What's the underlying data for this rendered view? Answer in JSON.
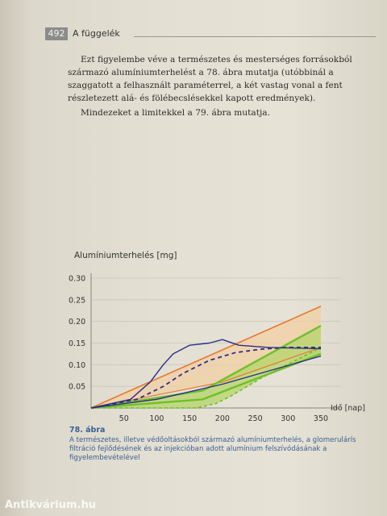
{
  "header": {
    "page_number": "492",
    "section": "A függelék"
  },
  "body": {
    "paragraphs": [
      "Ezt figyelembe véve a természetes és mesterséges forrásokból származó alumíniumterhelést a 78. ábra mutatja (utóbbinál a szaggatott a felhasznált paraméterrel, a két vastag vonal a fent részletezett alá- és fölébecslésekkel kapott eredmények).",
      "Mindezeket a limitekkel a 79. ábra mutatja."
    ]
  },
  "chart_data": {
    "type": "line",
    "title": "Alumíniumterhelés [mg]",
    "xlabel": "Idő [nap]",
    "ylabel": "",
    "xlim": [
      0,
      380
    ],
    "ylim": [
      0,
      0.3
    ],
    "x_ticks": [
      50,
      100,
      150,
      200,
      250,
      300,
      350
    ],
    "y_ticks": [
      "0.30",
      "0.25",
      "0.20",
      "0.15",
      "0.10",
      "0.05"
    ],
    "grid": true,
    "colors": {
      "orange": "#e8782c",
      "orange_fill": "#f1cfa3",
      "green": "#6fbf2a",
      "green_fill": "#b6d46a",
      "blue": "#2b2f86"
    },
    "series": [
      {
        "x": [
          0,
          350
        ],
        "y": [
          0.0,
          0.235
        ],
        "color": "#e8782c",
        "width": 1.6
      },
      {
        "x": [
          0,
          200,
          350
        ],
        "y": [
          0.0,
          0.06,
          0.14
        ],
        "color": "#e8782c",
        "width": 1.2
      },
      {
        "x": [
          0,
          170,
          350
        ],
        "y": [
          0.0,
          0.04,
          0.19
        ],
        "color": "#6fbf2a",
        "width": 2.4
      },
      {
        "x": [
          0,
          170,
          350
        ],
        "y": [
          0.0,
          0.02,
          0.125
        ],
        "color": "#6fbf2a",
        "width": 2.4
      },
      {
        "x": [
          0,
          100,
          160,
          190,
          200,
          210,
          260,
          350
        ],
        "y": [
          0.0,
          0.0,
          0.0,
          0.01,
          0.018,
          0.025,
          0.07,
          0.14
        ],
        "color": "#6fbf2a",
        "width": 1.6,
        "dash": "4,3"
      },
      {
        "x": [
          0,
          60,
          90,
          110,
          125,
          150,
          180,
          200,
          225,
          270,
          350
        ],
        "y": [
          0.0,
          0.02,
          0.06,
          0.1,
          0.125,
          0.145,
          0.15,
          0.158,
          0.145,
          0.14,
          0.137
        ],
        "color": "#2b2f86",
        "width": 1.4
      },
      {
        "x": [
          0,
          70,
          110,
          140,
          180,
          220,
          260,
          300,
          350
        ],
        "y": [
          0.0,
          0.02,
          0.05,
          0.08,
          0.11,
          0.128,
          0.136,
          0.14,
          0.14
        ],
        "color": "#2b2f86",
        "width": 1.8,
        "dash": "5,4"
      },
      {
        "x": [
          0,
          100,
          200,
          350
        ],
        "y": [
          0.0,
          0.02,
          0.055,
          0.12
        ],
        "color": "#2b2f86",
        "width": 1.4
      }
    ]
  },
  "caption": {
    "number": "78. ábra",
    "text": "A természetes, illetve védőoltásokból származó alumíniumterhelés, a glomerulárís filtráció fejlődésének és az injekcióban adott alumínium felszívódásának a figyelembevételével"
  },
  "watermark": "Antikvárium.hu"
}
